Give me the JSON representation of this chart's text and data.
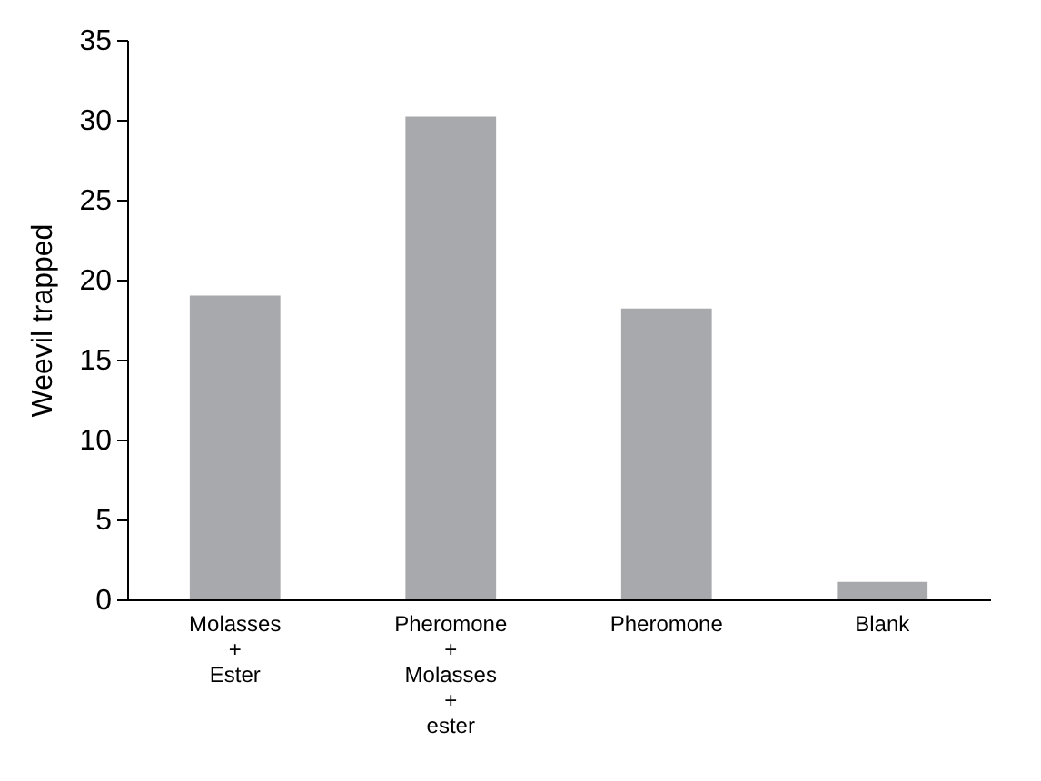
{
  "chart_data": {
    "type": "bar",
    "ylabel": "Weevil trapped",
    "categories": [
      "Molasses\n+\nEster",
      "Pheromone\n+\nMolasses\n+\nester",
      "Pheromone",
      "Blank"
    ],
    "values": [
      19,
      30.2,
      18.2,
      1.1
    ],
    "color": "#a7a9ac",
    "ylim": [
      0,
      35
    ],
    "yticks": [
      0,
      5,
      10,
      15,
      20,
      25,
      30,
      35
    ],
    "grid": false
  }
}
